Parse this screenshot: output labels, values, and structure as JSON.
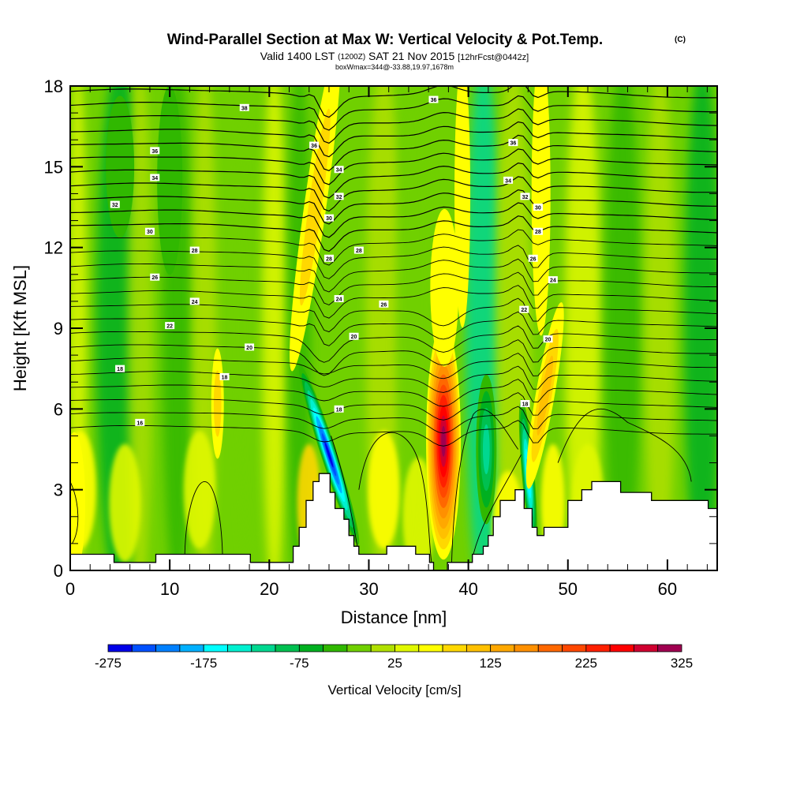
{
  "chart_data": {
    "type": "heatmap",
    "title": "Wind-Parallel Section at Max W: Vertical Velocity & Pot.Temp.",
    "title_mark": "(C)",
    "subtitle_parts": [
      "Valid 1400 LST",
      "(1200Z)",
      "SAT 21 Nov 2015",
      "[12hrFcst@0442z]"
    ],
    "subtitle2": "boxWmax=344@-33.88,19.97,1678m",
    "xlabel": "Distance [nm]",
    "ylabel": "Height [Kft MSL]",
    "xlim": [
      0,
      65
    ],
    "ylim": [
      0,
      18
    ],
    "xticks": [
      0,
      10,
      20,
      30,
      40,
      50,
      60
    ],
    "xtick_labels": [
      "0",
      "10",
      "20",
      "30",
      "40",
      "50",
      "60"
    ],
    "yticks": [
      0,
      3,
      6,
      9,
      12,
      15,
      18
    ],
    "ytick_labels": [
      "0",
      "3",
      "6",
      "9",
      "12",
      "15",
      "18"
    ],
    "colorbar": {
      "label": "Vertical Velocity [cm/s]",
      "min": -275,
      "max": 325,
      "step": 25,
      "tick_values": [
        -275,
        -175,
        -75,
        25,
        125,
        225,
        325
      ],
      "tick_labels": [
        "-275",
        "-175",
        "-75",
        "25",
        "125",
        "225",
        "325"
      ],
      "colors": [
        "#0000e8",
        "#0050ff",
        "#0080ff",
        "#00b0ff",
        "#00ffff",
        "#00f0d0",
        "#00d890",
        "#00c050",
        "#00b020",
        "#30b800",
        "#70d000",
        "#b0e000",
        "#e0f800",
        "#ffff00",
        "#ffd800",
        "#ffc000",
        "#ffa800",
        "#ff9000",
        "#ff6800",
        "#ff4800",
        "#ff2000",
        "#ff0000",
        "#d00030",
        "#a00050"
      ]
    },
    "background_value": -25,
    "w_features": [
      {
        "name": "downdraft-lee-26nm",
        "x": 25.8,
        "y": 4.6,
        "value": -270
      },
      {
        "name": "updraft-37nm",
        "x": 37.4,
        "y": 5.0,
        "value": 310
      },
      {
        "name": "downdraft-46nm",
        "x": 45.9,
        "y": 3.5,
        "value": -180
      },
      {
        "name": "updraft-47nm",
        "x": 47.5,
        "y": 6.0,
        "value": 90
      },
      {
        "name": "updraft-25nm",
        "x": 24.5,
        "y": 12.0,
        "value": 85
      },
      {
        "name": "updraft-15nm",
        "x": 14.8,
        "y": 6.0,
        "value": 75
      },
      {
        "name": "updraft-0nm",
        "x": 0.5,
        "y": 2.5,
        "value": 55
      }
    ],
    "contour_labels": [
      {
        "value": "38",
        "x": 17.5,
        "y": 17.2
      },
      {
        "value": "36",
        "x": 36.5,
        "y": 17.5
      },
      {
        "value": "36",
        "x": 8.5,
        "y": 15.6
      },
      {
        "value": "36",
        "x": 24.5,
        "y": 15.8
      },
      {
        "value": "36",
        "x": 44.5,
        "y": 15.9
      },
      {
        "value": "34",
        "x": 8.5,
        "y": 14.6
      },
      {
        "value": "34",
        "x": 27.0,
        "y": 14.9
      },
      {
        "value": "34",
        "x": 44.0,
        "y": 14.5
      },
      {
        "value": "32",
        "x": 4.5,
        "y": 13.6
      },
      {
        "value": "32",
        "x": 27.0,
        "y": 13.9
      },
      {
        "value": "32",
        "x": 45.7,
        "y": 13.9
      },
      {
        "value": "30",
        "x": 8.0,
        "y": 12.6
      },
      {
        "value": "30",
        "x": 26.0,
        "y": 13.1
      },
      {
        "value": "30",
        "x": 47.0,
        "y": 13.5
      },
      {
        "value": "28",
        "x": 12.5,
        "y": 11.9
      },
      {
        "value": "28",
        "x": 29.0,
        "y": 11.9
      },
      {
        "value": "28",
        "x": 26.0,
        "y": 11.6
      },
      {
        "value": "28",
        "x": 47.0,
        "y": 12.6
      },
      {
        "value": "26",
        "x": 8.5,
        "y": 10.9
      },
      {
        "value": "26",
        "x": 46.5,
        "y": 11.6
      },
      {
        "value": "26",
        "x": 31.5,
        "y": 9.9
      },
      {
        "value": "24",
        "x": 12.5,
        "y": 10.0
      },
      {
        "value": "24",
        "x": 27.0,
        "y": 10.1
      },
      {
        "value": "24",
        "x": 48.5,
        "y": 10.8
      },
      {
        "value": "22",
        "x": 10.0,
        "y": 9.1
      },
      {
        "value": "22",
        "x": 45.6,
        "y": 9.7
      },
      {
        "value": "20",
        "x": 18.0,
        "y": 8.3
      },
      {
        "value": "20",
        "x": 28.5,
        "y": 8.7
      },
      {
        "value": "20",
        "x": 48.0,
        "y": 8.6
      },
      {
        "value": "18",
        "x": 5.0,
        "y": 7.5
      },
      {
        "value": "18",
        "x": 15.5,
        "y": 7.2
      },
      {
        "value": "18",
        "x": 27.0,
        "y": 6.0
      },
      {
        "value": "18",
        "x": 45.7,
        "y": 6.2
      },
      {
        "value": "16",
        "x": 7.0,
        "y": 5.5
      }
    ],
    "terrain": {
      "x": [
        0,
        4.4,
        4.4,
        8.6,
        8.6,
        18.1,
        18.1,
        22.4,
        22.4,
        23.0,
        23.0,
        23.7,
        23.7,
        24.4,
        24.4,
        25.0,
        25.0,
        26.1,
        26.1,
        26.6,
        26.6,
        27.5,
        27.5,
        28.0,
        28.0,
        28.5,
        28.5,
        29.0,
        29.0,
        31.8,
        31.8,
        33.1,
        33.1,
        34.7,
        34.7,
        36.1,
        36.1,
        36.5,
        36.5,
        37.9,
        37.9,
        40.4,
        40.4,
        41.5,
        41.5,
        42.0,
        42.0,
        42.5,
        42.5,
        43.2,
        43.2,
        44.7,
        44.7,
        45.6,
        45.6,
        46.4,
        46.4,
        46.9,
        46.9,
        47.6,
        47.6,
        50.0,
        50.0,
        51.4,
        51.4,
        52.4,
        52.4,
        55.3,
        55.3,
        58.4,
        58.4,
        64.1,
        64.1,
        65
      ],
      "y": [
        0.6,
        0.6,
        0.3,
        0.3,
        0.6,
        0.6,
        0.3,
        0.3,
        0.9,
        0.9,
        1.6,
        1.6,
        2.6,
        2.6,
        3.3,
        3.3,
        3.6,
        3.6,
        2.9,
        2.9,
        2.3,
        2.3,
        1.9,
        1.9,
        1.3,
        1.3,
        0.9,
        0.9,
        0.6,
        0.6,
        0.9,
        0.9,
        0.9,
        0.9,
        0.6,
        0.6,
        0.3,
        0.3,
        0.0,
        0.0,
        0.3,
        0.3,
        0.6,
        0.6,
        0.9,
        0.9,
        1.3,
        1.3,
        2.0,
        2.0,
        2.6,
        2.6,
        3.0,
        3.0,
        2.3,
        2.3,
        1.6,
        1.6,
        1.3,
        1.3,
        1.6,
        1.6,
        2.6,
        2.6,
        3.0,
        3.0,
        3.3,
        3.3,
        2.9,
        2.9,
        2.6,
        2.6,
        2.3,
        2.3
      ]
    }
  }
}
